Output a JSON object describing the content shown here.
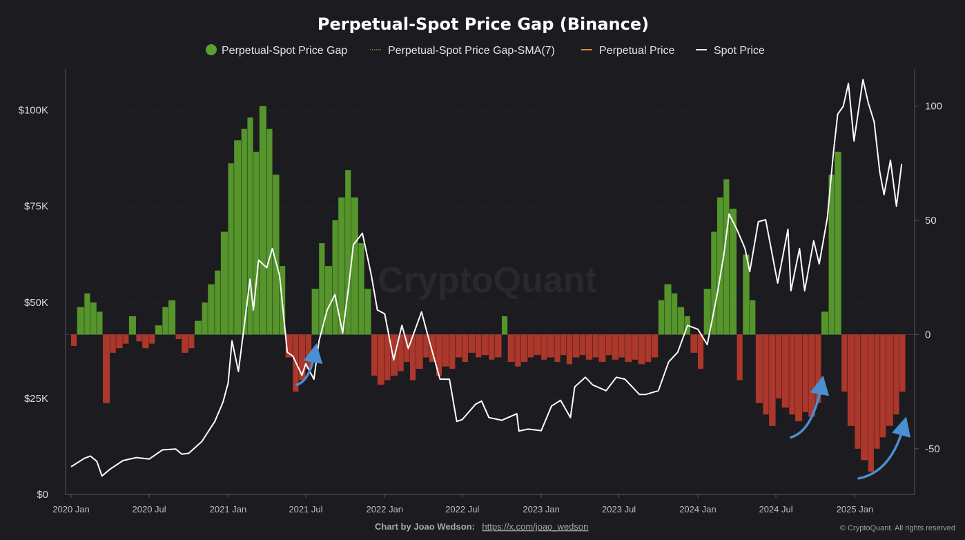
{
  "chart_data": {
    "type": "bar+line",
    "title": "Perpetual-Spot Price Gap (Binance)",
    "legend": [
      {
        "label": "Perpetual-Spot Price Gap",
        "color": "#5aa02c",
        "marker": "dot"
      },
      {
        "label": "Perpetual-Spot Price Gap-SMA(7)",
        "color": "#7d8f3a",
        "marker": "dotted-line"
      },
      {
        "label": "Perpetual Price",
        "color": "#e0892c",
        "marker": "line"
      },
      {
        "label": "Spot Price",
        "color": "#ffffff",
        "marker": "line"
      }
    ],
    "legend_position": "top-center",
    "x_ticks": [
      "2020 Jan",
      "2020 Jul",
      "2021 Jan",
      "2021 Jul",
      "2022 Jan",
      "2022 Jul",
      "2023 Jan",
      "2023 Jul",
      "2024 Jan",
      "2024 Jul",
      "2025 Jan"
    ],
    "x_range": [
      "2020-01-01",
      "2025-05-01"
    ],
    "y_left": {
      "ticks": [
        "$0",
        "$25K",
        "$50K",
        "$75K",
        "$100K"
      ],
      "range": [
        0,
        110000
      ],
      "series": "Spot Price"
    },
    "y_right": {
      "ticks": [
        "-50",
        "0",
        "50",
        "100"
      ],
      "range": [
        -70,
        115
      ],
      "series": "Perpetual-Spot Price Gap"
    },
    "grid": true,
    "positive_color": "#5aa02c",
    "negative_color": "#b83a2c",
    "price_color": "#ffffff",
    "arrow_color": "#4a8fd1",
    "gap_series": [
      [
        "2020-01-01",
        -5
      ],
      [
        "2020-01-15",
        12
      ],
      [
        "2020-02-01",
        18
      ],
      [
        "2020-02-15",
        14
      ],
      [
        "2020-03-01",
        10
      ],
      [
        "2020-03-15",
        -30
      ],
      [
        "2020-04-01",
        -8
      ],
      [
        "2020-04-15",
        -6
      ],
      [
        "2020-05-01",
        -4
      ],
      [
        "2020-05-15",
        8
      ],
      [
        "2020-06-01",
        -3
      ],
      [
        "2020-06-15",
        -6
      ],
      [
        "2020-07-01",
        -4
      ],
      [
        "2020-07-15",
        4
      ],
      [
        "2020-08-01",
        12
      ],
      [
        "2020-08-15",
        15
      ],
      [
        "2020-09-01",
        -2
      ],
      [
        "2020-09-15",
        -8
      ],
      [
        "2020-10-01",
        -6
      ],
      [
        "2020-10-15",
        6
      ],
      [
        "2020-11-01",
        14
      ],
      [
        "2020-11-15",
        22
      ],
      [
        "2020-12-01",
        28
      ],
      [
        "2020-12-15",
        45
      ],
      [
        "2021-01-01",
        75
      ],
      [
        "2021-01-15",
        85
      ],
      [
        "2021-02-01",
        90
      ],
      [
        "2021-02-15",
        95
      ],
      [
        "2021-03-01",
        80
      ],
      [
        "2021-03-15",
        100
      ],
      [
        "2021-04-01",
        90
      ],
      [
        "2021-04-15",
        70
      ],
      [
        "2021-05-01",
        30
      ],
      [
        "2021-05-15",
        -10
      ],
      [
        "2021-06-01",
        -25
      ],
      [
        "2021-06-15",
        -20
      ],
      [
        "2021-07-01",
        -15
      ],
      [
        "2021-07-15",
        20
      ],
      [
        "2021-08-01",
        40
      ],
      [
        "2021-08-15",
        30
      ],
      [
        "2021-09-01",
        50
      ],
      [
        "2021-09-15",
        60
      ],
      [
        "2021-10-01",
        72
      ],
      [
        "2021-10-15",
        60
      ],
      [
        "2021-11-01",
        40
      ],
      [
        "2021-11-15",
        20
      ],
      [
        "2021-12-01",
        -18
      ],
      [
        "2021-12-15",
        -22
      ],
      [
        "2022-01-01",
        -20
      ],
      [
        "2022-01-15",
        -18
      ],
      [
        "2022-02-01",
        -16
      ],
      [
        "2022-02-15",
        -12
      ],
      [
        "2022-03-01",
        -20
      ],
      [
        "2022-03-15",
        -15
      ],
      [
        "2022-04-01",
        -10
      ],
      [
        "2022-04-15",
        -12
      ],
      [
        "2022-05-01",
        -18
      ],
      [
        "2022-05-15",
        -14
      ],
      [
        "2022-06-01",
        -15
      ],
      [
        "2022-06-15",
        -10
      ],
      [
        "2022-07-01",
        -12
      ],
      [
        "2022-07-15",
        -8
      ],
      [
        "2022-08-01",
        -10
      ],
      [
        "2022-08-15",
        -9
      ],
      [
        "2022-09-01",
        -11
      ],
      [
        "2022-09-15",
        -10
      ],
      [
        "2022-10-01",
        8
      ],
      [
        "2022-10-15",
        -12
      ],
      [
        "2022-11-01",
        -14
      ],
      [
        "2022-11-15",
        -12
      ],
      [
        "2022-12-01",
        -10
      ],
      [
        "2022-12-15",
        -9
      ],
      [
        "2023-01-01",
        -11
      ],
      [
        "2023-01-15",
        -10
      ],
      [
        "2023-02-01",
        -12
      ],
      [
        "2023-02-15",
        -9
      ],
      [
        "2023-03-01",
        -13
      ],
      [
        "2023-03-15",
        -10
      ],
      [
        "2023-04-01",
        -9
      ],
      [
        "2023-04-15",
        -11
      ],
      [
        "2023-05-01",
        -10
      ],
      [
        "2023-05-15",
        -12
      ],
      [
        "2023-06-01",
        -9
      ],
      [
        "2023-06-15",
        -11
      ],
      [
        "2023-07-01",
        -10
      ],
      [
        "2023-07-15",
        -12
      ],
      [
        "2023-08-01",
        -11
      ],
      [
        "2023-08-15",
        -13
      ],
      [
        "2023-09-01",
        -12
      ],
      [
        "2023-09-15",
        -10
      ],
      [
        "2023-10-01",
        15
      ],
      [
        "2023-10-15",
        22
      ],
      [
        "2023-11-01",
        18
      ],
      [
        "2023-11-15",
        12
      ],
      [
        "2023-12-01",
        8
      ],
      [
        "2023-12-15",
        -8
      ],
      [
        "2024-01-01",
        -15
      ],
      [
        "2024-01-15",
        20
      ],
      [
        "2024-02-01",
        45
      ],
      [
        "2024-02-15",
        60
      ],
      [
        "2024-03-01",
        68
      ],
      [
        "2024-03-15",
        55
      ],
      [
        "2024-04-01",
        -20
      ],
      [
        "2024-04-15",
        35
      ],
      [
        "2024-05-01",
        15
      ],
      [
        "2024-05-15",
        -30
      ],
      [
        "2024-06-01",
        -35
      ],
      [
        "2024-06-15",
        -40
      ],
      [
        "2024-07-01",
        -28
      ],
      [
        "2024-07-15",
        -32
      ],
      [
        "2024-08-01",
        -35
      ],
      [
        "2024-08-15",
        -38
      ],
      [
        "2024-09-01",
        -34
      ],
      [
        "2024-09-15",
        -36
      ],
      [
        "2024-10-01",
        -30
      ],
      [
        "2024-10-15",
        10
      ],
      [
        "2024-11-01",
        70
      ],
      [
        "2024-11-15",
        80
      ],
      [
        "2024-12-01",
        -25
      ],
      [
        "2024-12-15",
        -40
      ],
      [
        "2025-01-01",
        -50
      ],
      [
        "2025-01-15",
        -55
      ],
      [
        "2025-02-01",
        -60
      ],
      [
        "2025-02-15",
        -50
      ],
      [
        "2025-03-01",
        -45
      ],
      [
        "2025-03-15",
        -40
      ],
      [
        "2025-04-01",
        -35
      ],
      [
        "2025-04-15",
        -25
      ]
    ],
    "spot_series": [
      [
        "2020-01-01",
        7200
      ],
      [
        "2020-02-01",
        9400
      ],
      [
        "2020-02-15",
        10000
      ],
      [
        "2020-03-01",
        8600
      ],
      [
        "2020-03-13",
        4800
      ],
      [
        "2020-04-01",
        6600
      ],
      [
        "2020-05-01",
        8800
      ],
      [
        "2020-06-01",
        9600
      ],
      [
        "2020-07-01",
        9200
      ],
      [
        "2020-08-01",
        11600
      ],
      [
        "2020-09-01",
        11800
      ],
      [
        "2020-09-15",
        10500
      ],
      [
        "2020-10-01",
        10700
      ],
      [
        "2020-11-01",
        13800
      ],
      [
        "2020-12-01",
        19000
      ],
      [
        "2020-12-20",
        24000
      ],
      [
        "2021-01-01",
        29000
      ],
      [
        "2021-01-10",
        40000
      ],
      [
        "2021-01-25",
        32000
      ],
      [
        "2021-02-10",
        46000
      ],
      [
        "2021-02-21",
        56000
      ],
      [
        "2021-03-01",
        48000
      ],
      [
        "2021-03-13",
        61000
      ],
      [
        "2021-04-01",
        59000
      ],
      [
        "2021-04-14",
        64000
      ],
      [
        "2021-05-01",
        57000
      ],
      [
        "2021-05-19",
        37000
      ],
      [
        "2021-06-01",
        36000
      ],
      [
        "2021-06-22",
        31000
      ],
      [
        "2021-07-01",
        34000
      ],
      [
        "2021-07-20",
        30000
      ],
      [
        "2021-08-01",
        40000
      ],
      [
        "2021-08-20",
        48000
      ],
      [
        "2021-09-07",
        52000
      ],
      [
        "2021-09-25",
        42000
      ],
      [
        "2021-10-10",
        55000
      ],
      [
        "2021-10-20",
        65000
      ],
      [
        "2021-11-10",
        68000
      ],
      [
        "2021-12-01",
        57000
      ],
      [
        "2021-12-15",
        48000
      ],
      [
        "2022-01-01",
        47000
      ],
      [
        "2022-01-22",
        35000
      ],
      [
        "2022-02-10",
        44000
      ],
      [
        "2022-02-25",
        38000
      ],
      [
        "2022-03-28",
        47500
      ],
      [
        "2022-04-15",
        40000
      ],
      [
        "2022-05-10",
        30000
      ],
      [
        "2022-06-01",
        30000
      ],
      [
        "2022-06-18",
        19000
      ],
      [
        "2022-07-01",
        19500
      ],
      [
        "2022-08-01",
        23500
      ],
      [
        "2022-08-15",
        24300
      ],
      [
        "2022-09-01",
        20000
      ],
      [
        "2022-10-01",
        19300
      ],
      [
        "2022-11-05",
        21000
      ],
      [
        "2022-11-10",
        16500
      ],
      [
        "2022-12-01",
        17000
      ],
      [
        "2023-01-01",
        16600
      ],
      [
        "2023-01-25",
        23000
      ],
      [
        "2023-02-15",
        24500
      ],
      [
        "2023-03-10",
        20000
      ],
      [
        "2023-03-20",
        28000
      ],
      [
        "2023-04-14",
        30500
      ],
      [
        "2023-05-01",
        28500
      ],
      [
        "2023-06-01",
        27000
      ],
      [
        "2023-06-25",
        30500
      ],
      [
        "2023-07-15",
        30000
      ],
      [
        "2023-08-18",
        26000
      ],
      [
        "2023-09-01",
        26000
      ],
      [
        "2023-10-01",
        27000
      ],
      [
        "2023-10-25",
        34500
      ],
      [
        "2023-11-15",
        37000
      ],
      [
        "2023-12-08",
        44000
      ],
      [
        "2024-01-01",
        43000
      ],
      [
        "2024-01-23",
        39000
      ],
      [
        "2024-02-15",
        52000
      ],
      [
        "2024-03-01",
        62000
      ],
      [
        "2024-03-14",
        73000
      ],
      [
        "2024-04-01",
        69000
      ],
      [
        "2024-04-20",
        64000
      ],
      [
        "2024-05-01",
        58000
      ],
      [
        "2024-05-21",
        71000
      ],
      [
        "2024-06-07",
        71500
      ],
      [
        "2024-07-05",
        55000
      ],
      [
        "2024-07-29",
        69000
      ],
      [
        "2024-08-05",
        53000
      ],
      [
        "2024-08-25",
        64000
      ],
      [
        "2024-09-06",
        53000
      ],
      [
        "2024-09-27",
        66000
      ],
      [
        "2024-10-10",
        60000
      ],
      [
        "2024-10-29",
        72000
      ],
      [
        "2024-11-12",
        89000
      ],
      [
        "2024-11-22",
        99000
      ],
      [
        "2024-12-05",
        101000
      ],
      [
        "2024-12-17",
        107000
      ],
      [
        "2024-12-30",
        92000
      ],
      [
        "2025-01-20",
        108000
      ],
      [
        "2025-02-01",
        102000
      ],
      [
        "2025-02-15",
        97000
      ],
      [
        "2025-02-28",
        84000
      ],
      [
        "2025-03-10",
        78000
      ],
      [
        "2025-03-25",
        87000
      ],
      [
        "2025-04-08",
        75000
      ],
      [
        "2025-04-20",
        86000
      ]
    ],
    "arrows": [
      {
        "from": [
          "2021-06-10",
          -22
        ],
        "to": [
          "2021-07-22",
          -8
        ]
      },
      {
        "from": [
          "2024-08-05",
          -45
        ],
        "to": [
          "2024-10-15",
          -22
        ]
      },
      {
        "from": [
          "2025-01-10",
          -63
        ],
        "to": [
          "2025-04-25",
          -40
        ]
      }
    ]
  },
  "watermark": "CryptoQuant",
  "footer": {
    "credit_label": "Chart by Joao Wedson:",
    "credit_link": "https://x.com/joao_wedson",
    "copyright": "© CryptoQuant. All rights reserved"
  }
}
